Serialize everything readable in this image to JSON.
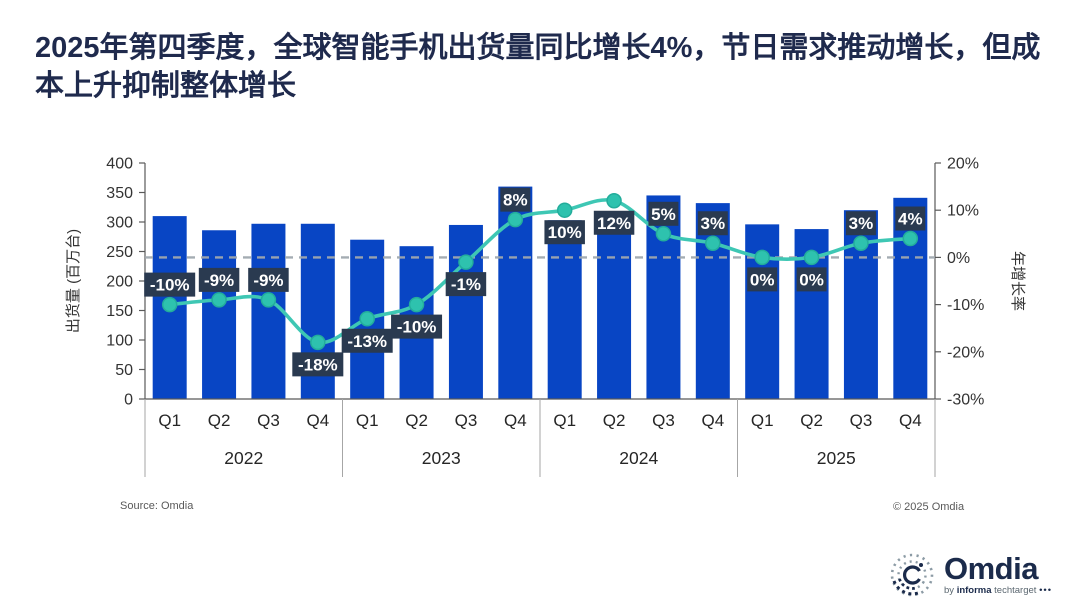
{
  "title": "2025年第四季度，全球智能手机出货量同比增长4%，节日需求推动增长，但成本上升抑制整体增长",
  "colors": {
    "title": "#1F2A4D",
    "bar": "#0845C4",
    "line": "#3EC7B4",
    "dot": "#2EC2AE",
    "label_bg": "#2A3A50",
    "label_text": "#FFFFFF",
    "axis": "#595959",
    "tick_text": "#333333",
    "dashed_line": "#A0A8AE"
  },
  "chart_data": {
    "type": "combo (bar + line)",
    "left_axis": {
      "label": "出货量 (百万台)",
      "min": 0,
      "max": 400,
      "tick_step": 50,
      "ticks": [
        400,
        350,
        300,
        250,
        200,
        150,
        100,
        50,
        0
      ]
    },
    "right_axis": {
      "label": "年增长率",
      "min": -30,
      "max": 20,
      "tick_step": 10,
      "ticks": [
        "20%",
        "10%",
        "0%",
        "-10%",
        "-20%",
        "-30%"
      ]
    },
    "zero_line": {
      "style": "dashed",
      "at_pct": 0
    },
    "bar_series": {
      "name": "出货量",
      "unit": "百万台"
    },
    "line_series": {
      "name": "年增长率",
      "unit": "%"
    },
    "years": [
      "2022",
      "2023",
      "2024",
      "2025"
    ],
    "quarters": [
      {
        "year": "2022",
        "quarter": "Q1",
        "shipments": 310,
        "growth_pct": -10,
        "growth_label": "-10%",
        "label_pos": "above"
      },
      {
        "year": "2022",
        "quarter": "Q2",
        "shipments": 286,
        "growth_pct": -9,
        "growth_label": "-9%",
        "label_pos": "above"
      },
      {
        "year": "2022",
        "quarter": "Q3",
        "shipments": 297,
        "growth_pct": -9,
        "growth_label": "-9%",
        "label_pos": "above"
      },
      {
        "year": "2022",
        "quarter": "Q4",
        "shipments": 297,
        "growth_pct": -18,
        "growth_label": "-18%",
        "label_pos": "below"
      },
      {
        "year": "2023",
        "quarter": "Q1",
        "shipments": 270,
        "growth_pct": -13,
        "growth_label": "-13%",
        "label_pos": "below"
      },
      {
        "year": "2023",
        "quarter": "Q2",
        "shipments": 259,
        "growth_pct": -10,
        "growth_label": "-10%",
        "label_pos": "below"
      },
      {
        "year": "2023",
        "quarter": "Q3",
        "shipments": 295,
        "growth_pct": -1,
        "growth_label": "-1%",
        "label_pos": "below"
      },
      {
        "year": "2023",
        "quarter": "Q4",
        "shipments": 360,
        "growth_pct": 8,
        "growth_label": "8%",
        "label_pos": "above"
      },
      {
        "year": "2024",
        "quarter": "Q1",
        "shipments": 303,
        "growth_pct": 10,
        "growth_label": "10%",
        "label_pos": "below"
      },
      {
        "year": "2024",
        "quarter": "Q2",
        "shipments": 315,
        "growth_pct": 12,
        "growth_label": "12%",
        "label_pos": "below"
      },
      {
        "year": "2024",
        "quarter": "Q3",
        "shipments": 345,
        "growth_pct": 5,
        "growth_label": "5%",
        "label_pos": "above"
      },
      {
        "year": "2024",
        "quarter": "Q4",
        "shipments": 332,
        "growth_pct": 3,
        "growth_label": "3%",
        "label_pos": "above"
      },
      {
        "year": "2025",
        "quarter": "Q1",
        "shipments": 296,
        "growth_pct": 0,
        "growth_label": "0%",
        "label_pos": "below"
      },
      {
        "year": "2025",
        "quarter": "Q2",
        "shipments": 288,
        "growth_pct": 0,
        "growth_label": "0%",
        "label_pos": "below"
      },
      {
        "year": "2025",
        "quarter": "Q3",
        "shipments": 320,
        "growth_pct": 3,
        "growth_label": "3%",
        "label_pos": "above"
      },
      {
        "year": "2025",
        "quarter": "Q4",
        "shipments": 341,
        "growth_pct": 4,
        "growth_label": "4%",
        "label_pos": "above"
      }
    ]
  },
  "footer": {
    "source": "Source: Omdia",
    "copyright": "© 2025 Omdia"
  },
  "logo": {
    "name": "Omdia",
    "by": "by",
    "informa": "informa",
    "techtarget": "techtarget",
    "dots": "•••"
  }
}
